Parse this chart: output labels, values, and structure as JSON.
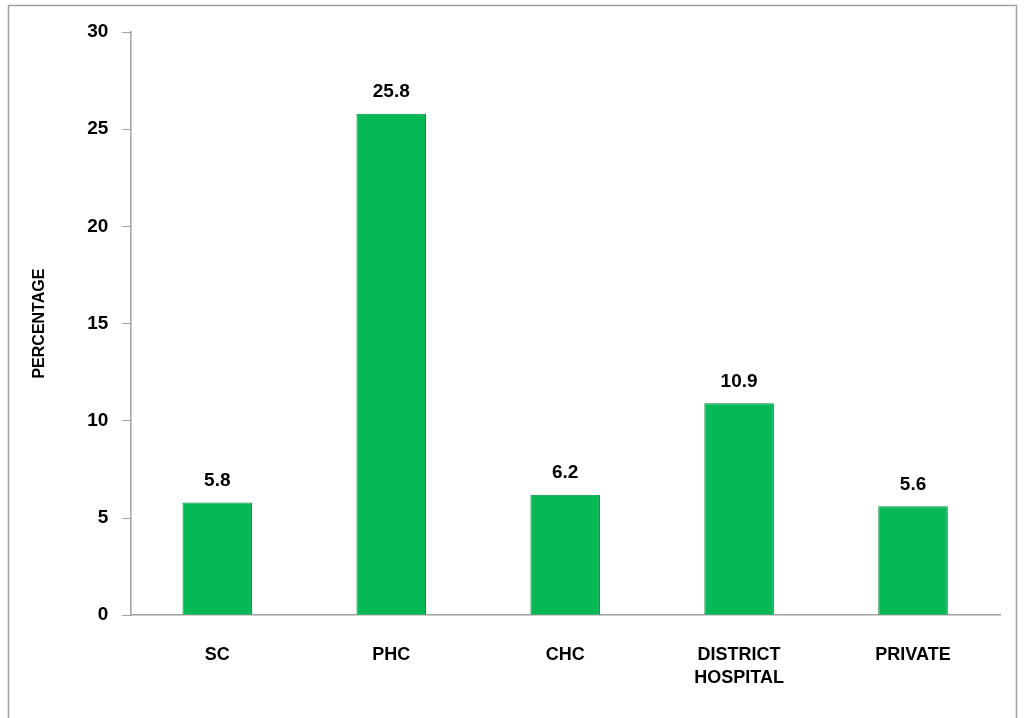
{
  "chart_data": {
    "type": "bar",
    "ylabel": "PERCENTAGE",
    "categories": [
      "SC",
      "PHC",
      "CHC",
      "DISTRICT HOSPITAL",
      "PRIVATE"
    ],
    "values": [
      5.8,
      25.8,
      6.2,
      10.9,
      5.6
    ],
    "color": "#06b956",
    "ylim": [
      0,
      30
    ],
    "yticks": [
      0,
      5,
      10,
      15,
      20,
      25,
      30
    ],
    "grid": false,
    "legend": false,
    "data_labels": true
  }
}
